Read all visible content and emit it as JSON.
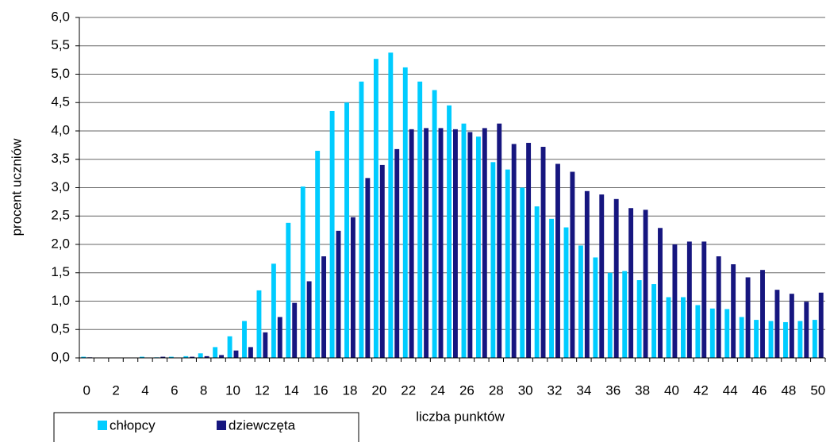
{
  "chart_data": {
    "type": "bar",
    "x_label": "liczba punktów",
    "y_label": "procent uczniów",
    "categories": [
      "0",
      null,
      "2",
      null,
      "4",
      null,
      "6",
      null,
      "8",
      null,
      "10",
      null,
      "12",
      null,
      "14",
      null,
      "16",
      null,
      "18",
      null,
      "20",
      null,
      "22",
      null,
      "24",
      null,
      "26",
      null,
      "28",
      null,
      "30",
      null,
      "32",
      null,
      "34",
      null,
      "36",
      null,
      "38",
      null,
      "40",
      null,
      "42",
      null,
      "44",
      null,
      "46",
      null,
      "48",
      null,
      "50"
    ],
    "series": [
      {
        "name": "chłopcy",
        "color": "#00ccff",
        "values": [
          0.02,
          0,
          0,
          0,
          0.02,
          0.01,
          0.02,
          0.03,
          0.08,
          0.19,
          0.38,
          0.65,
          1.19,
          1.66,
          2.38,
          3.02,
          3.65,
          4.35,
          4.5,
          4.87,
          5.27,
          5.38,
          5.12,
          4.87,
          4.72,
          4.45,
          4.13,
          3.9,
          3.45,
          3.32,
          3.0,
          2.67,
          2.45,
          2.3,
          1.98,
          1.77,
          1.5,
          1.53,
          1.37,
          1.3,
          1.07,
          1.07,
          0.93,
          0.87,
          0.86,
          0.72,
          0.67,
          0.65,
          0.63,
          0.65,
          0.67
        ]
      },
      {
        "name": "dziewczęta",
        "color": "#16167f",
        "values": [
          0.01,
          0,
          0,
          0,
          0,
          0.02,
          0,
          0.02,
          0.03,
          0.05,
          0.13,
          0.19,
          0.45,
          0.72,
          0.97,
          1.35,
          1.79,
          2.24,
          2.48,
          3.17,
          3.4,
          3.68,
          4.03,
          4.05,
          4.05,
          4.03,
          3.98,
          4.05,
          4.13,
          3.77,
          3.79,
          3.72,
          3.42,
          3.28,
          2.94,
          2.88,
          2.8,
          2.64,
          2.61,
          2.29,
          2.0,
          2.05,
          2.05,
          1.79,
          1.65,
          1.42,
          1.55,
          1.2,
          1.13,
          0.99,
          1.15
        ]
      }
    ],
    "ylim": [
      0,
      6
    ],
    "yticks": [
      {
        "value": 0,
        "label": "0,0"
      },
      {
        "value": 0.5,
        "label": "0,5"
      },
      {
        "value": 1,
        "label": "1,0"
      },
      {
        "value": 1.5,
        "label": "1,5"
      },
      {
        "value": 2,
        "label": "2,0"
      },
      {
        "value": 2.5,
        "label": "2,5"
      },
      {
        "value": 3,
        "label": "3,0"
      },
      {
        "value": 3.5,
        "label": "3,5"
      },
      {
        "value": 4,
        "label": "4,0"
      },
      {
        "value": 4.5,
        "label": "4,5"
      },
      {
        "value": 5,
        "label": "5,0"
      },
      {
        "value": 5.5,
        "label": "5,5"
      },
      {
        "value": 6,
        "label": "6,0"
      }
    ],
    "grid": true,
    "legend": "bottom-left"
  }
}
